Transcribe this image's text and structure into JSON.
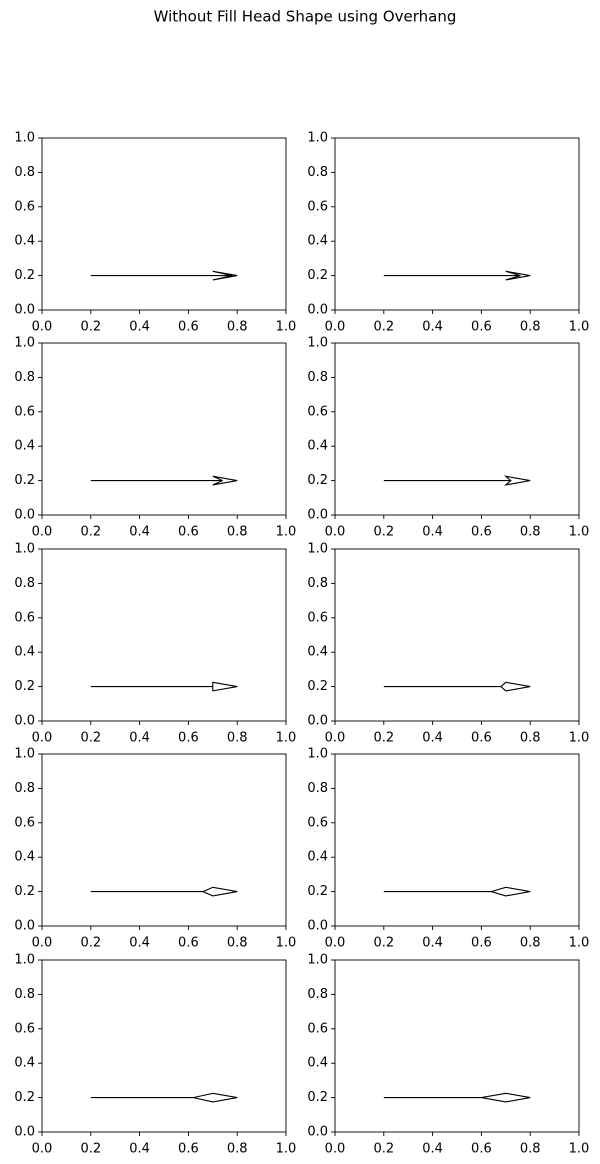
{
  "title": "Without Fill Head Shape using Overhang",
  "chart_data": [
    {
      "type": "arrow",
      "x": 0.2,
      "y": 0.2,
      "dx": 0.6,
      "dy": 0,
      "head_width": 0.05,
      "head_length": 0.1,
      "overhang": 0.8,
      "color": "#000000",
      "fill": false,
      "xlim": [
        0,
        1
      ],
      "ylim": [
        0,
        1
      ],
      "xticks": [
        {
          "value": 0,
          "label": "0.0"
        },
        0.2,
        0.4,
        0.6,
        0.8,
        {
          "value": 1,
          "label": "1.0"
        }
      ],
      "yticks": [
        {
          "value": 0,
          "label": "0.0"
        },
        0.2,
        0.4,
        0.6,
        0.8,
        {
          "value": 1,
          "label": "1.0"
        }
      ]
    },
    {
      "type": "arrow",
      "x": 0.2,
      "y": 0.2,
      "dx": 0.6,
      "dy": 0,
      "head_width": 0.05,
      "head_length": 0.1,
      "overhang": 0.6,
      "color": "#000000",
      "fill": false,
      "xlim": [
        0,
        1
      ],
      "ylim": [
        0,
        1
      ],
      "xticks": [
        {
          "value": 0,
          "label": "0.0"
        },
        0.2,
        0.4,
        0.6,
        0.8,
        {
          "value": 1,
          "label": "1.0"
        }
      ],
      "yticks": [
        {
          "value": 0,
          "label": "0.0"
        },
        0.2,
        0.4,
        0.6,
        0.8,
        {
          "value": 1,
          "label": "1.0"
        }
      ]
    },
    {
      "type": "arrow",
      "x": 0.2,
      "y": 0.2,
      "dx": 0.6,
      "dy": 0,
      "head_width": 0.05,
      "head_length": 0.1,
      "overhang": 0.4,
      "color": "#000000",
      "fill": false,
      "xlim": [
        0,
        1
      ],
      "ylim": [
        0,
        1
      ],
      "xticks": [
        {
          "value": 0,
          "label": "0.0"
        },
        0.2,
        0.4,
        0.6,
        0.8,
        {
          "value": 1,
          "label": "1.0"
        }
      ],
      "yticks": [
        {
          "value": 0,
          "label": "0.0"
        },
        0.2,
        0.4,
        0.6,
        0.8,
        {
          "value": 1,
          "label": "1.0"
        }
      ]
    },
    {
      "type": "arrow",
      "x": 0.2,
      "y": 0.2,
      "dx": 0.6,
      "dy": 0,
      "head_width": 0.05,
      "head_length": 0.1,
      "overhang": 0.2,
      "color": "#000000",
      "fill": false,
      "xlim": [
        0,
        1
      ],
      "ylim": [
        0,
        1
      ],
      "xticks": [
        {
          "value": 0,
          "label": "0.0"
        },
        0.2,
        0.4,
        0.6,
        0.8,
        {
          "value": 1,
          "label": "1.0"
        }
      ],
      "yticks": [
        {
          "value": 0,
          "label": "0.0"
        },
        0.2,
        0.4,
        0.6,
        0.8,
        {
          "value": 1,
          "label": "1.0"
        }
      ]
    },
    {
      "type": "arrow",
      "x": 0.2,
      "y": 0.2,
      "dx": 0.6,
      "dy": 0,
      "head_width": 0.05,
      "head_length": 0.1,
      "overhang": 0,
      "color": "#000000",
      "fill": false,
      "xlim": [
        0,
        1
      ],
      "ylim": [
        0,
        1
      ],
      "xticks": [
        {
          "value": 0,
          "label": "0.0"
        },
        0.2,
        0.4,
        0.6,
        0.8,
        {
          "value": 1,
          "label": "1.0"
        }
      ],
      "yticks": [
        {
          "value": 0,
          "label": "0.0"
        },
        0.2,
        0.4,
        0.6,
        0.8,
        {
          "value": 1,
          "label": "1.0"
        }
      ]
    },
    {
      "type": "arrow",
      "x": 0.2,
      "y": 0.2,
      "dx": 0.6,
      "dy": 0,
      "head_width": 0.05,
      "head_length": 0.1,
      "overhang": -0.2,
      "color": "#000000",
      "fill": false,
      "xlim": [
        0,
        1
      ],
      "ylim": [
        0,
        1
      ],
      "xticks": [
        {
          "value": 0,
          "label": "0.0"
        },
        0.2,
        0.4,
        0.6,
        0.8,
        {
          "value": 1,
          "label": "1.0"
        }
      ],
      "yticks": [
        {
          "value": 0,
          "label": "0.0"
        },
        0.2,
        0.4,
        0.6,
        0.8,
        {
          "value": 1,
          "label": "1.0"
        }
      ]
    },
    {
      "type": "arrow",
      "x": 0.2,
      "y": 0.2,
      "dx": 0.6,
      "dy": 0,
      "head_width": 0.05,
      "head_length": 0.1,
      "overhang": -0.4,
      "color": "#000000",
      "fill": false,
      "xlim": [
        0,
        1
      ],
      "ylim": [
        0,
        1
      ],
      "xticks": [
        {
          "value": 0,
          "label": "0.0"
        },
        0.2,
        0.4,
        0.6,
        0.8,
        {
          "value": 1,
          "label": "1.0"
        }
      ],
      "yticks": [
        {
          "value": 0,
          "label": "0.0"
        },
        0.2,
        0.4,
        0.6,
        0.8,
        {
          "value": 1,
          "label": "1.0"
        }
      ]
    },
    {
      "type": "arrow",
      "x": 0.2,
      "y": 0.2,
      "dx": 0.6,
      "dy": 0,
      "head_width": 0.05,
      "head_length": 0.1,
      "overhang": -0.6,
      "color": "#000000",
      "fill": false,
      "xlim": [
        0,
        1
      ],
      "ylim": [
        0,
        1
      ],
      "xticks": [
        {
          "value": 0,
          "label": "0.0"
        },
        0.2,
        0.4,
        0.6,
        0.8,
        {
          "value": 1,
          "label": "1.0"
        }
      ],
      "yticks": [
        {
          "value": 0,
          "label": "0.0"
        },
        0.2,
        0.4,
        0.6,
        0.8,
        {
          "value": 1,
          "label": "1.0"
        }
      ]
    },
    {
      "type": "arrow",
      "x": 0.2,
      "y": 0.2,
      "dx": 0.6,
      "dy": 0,
      "head_width": 0.05,
      "head_length": 0.1,
      "overhang": -0.8,
      "color": "#000000",
      "fill": false,
      "xlim": [
        0,
        1
      ],
      "ylim": [
        0,
        1
      ],
      "xticks": [
        {
          "value": 0,
          "label": "0.0"
        },
        0.2,
        0.4,
        0.6,
        0.8,
        {
          "value": 1,
          "label": "1.0"
        }
      ],
      "yticks": [
        {
          "value": 0,
          "label": "0.0"
        },
        0.2,
        0.4,
        0.6,
        0.8,
        {
          "value": 1,
          "label": "1.0"
        }
      ]
    },
    {
      "type": "arrow",
      "x": 0.2,
      "y": 0.2,
      "dx": 0.6,
      "dy": 0,
      "head_width": 0.05,
      "head_length": 0.1,
      "overhang": -1.0,
      "color": "#000000",
      "fill": false,
      "xlim": [
        0,
        1
      ],
      "ylim": [
        0,
        1
      ],
      "xticks": [
        {
          "value": 0,
          "label": "0.0"
        },
        0.2,
        0.4,
        0.6,
        0.8,
        {
          "value": 1,
          "label": "1.0"
        }
      ],
      "yticks": [
        {
          "value": 0,
          "label": "0.0"
        },
        0.2,
        0.4,
        0.6,
        0.8,
        {
          "value": 1,
          "label": "1.0"
        }
      ]
    }
  ]
}
